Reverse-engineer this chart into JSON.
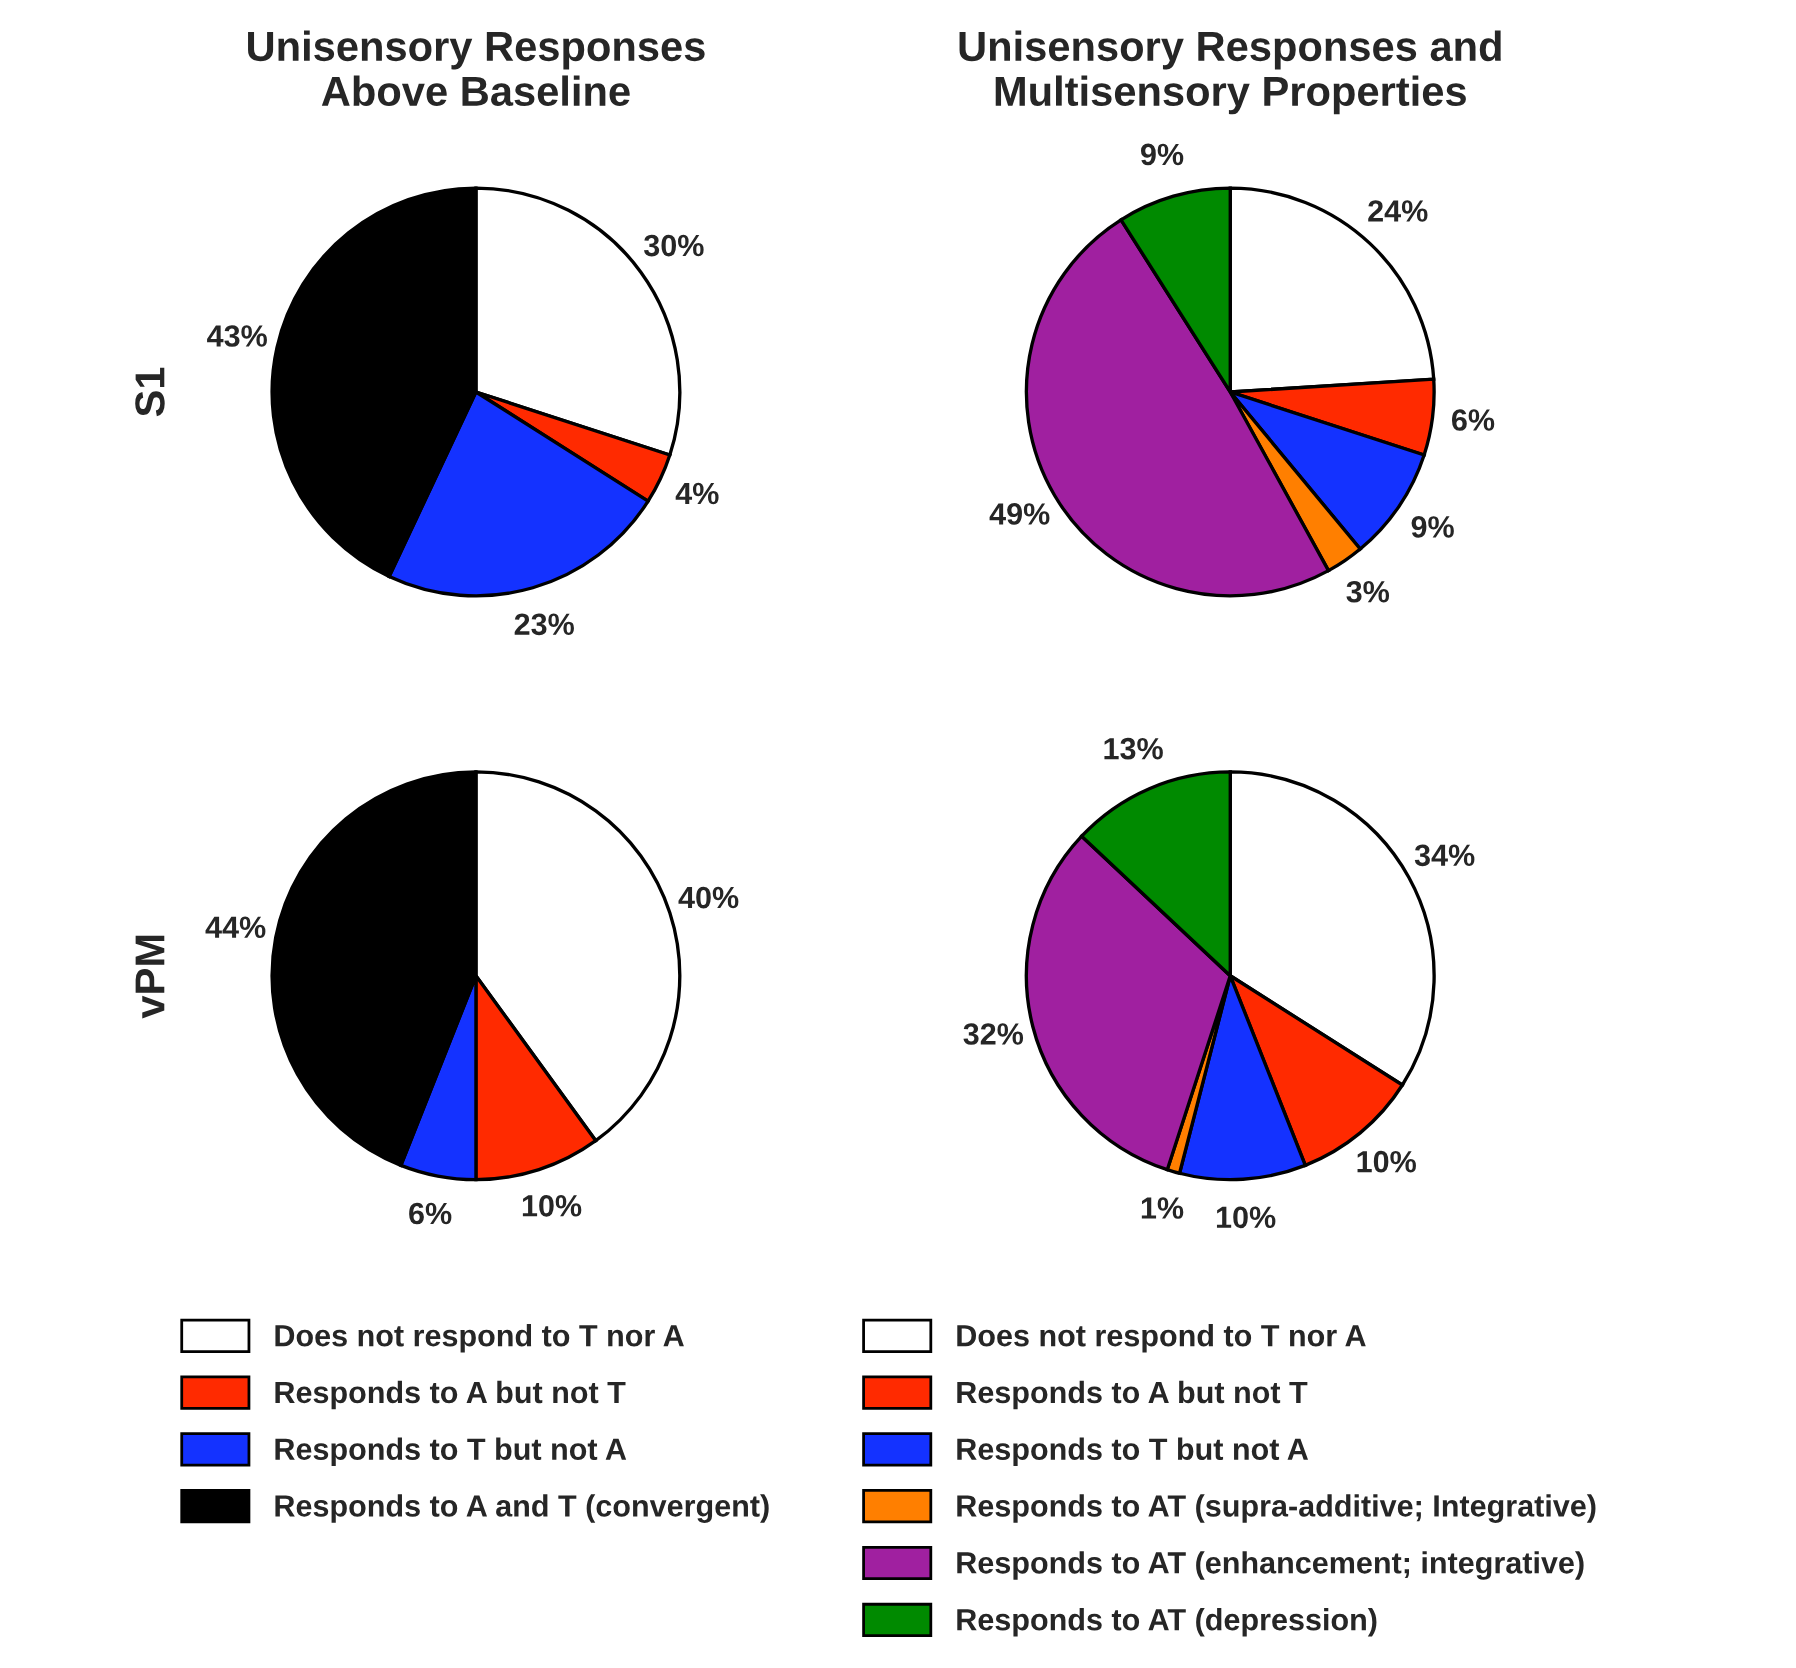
{
  "chart_data": [
    {
      "type": "pie",
      "title": "Unisensory Responses\nAbove Baseline",
      "ylabel": "S1",
      "categories": [
        "Does not respond to T nor A",
        "Responds to A but not T",
        "Responds to T but not A",
        "Responds to A and T (convergent)"
      ],
      "values": [
        30,
        4,
        23,
        43
      ],
      "colors": [
        "#ffffff",
        "#ff2a00",
        "#1432ff",
        "#000000"
      ],
      "value_labels": [
        "30%",
        "4%",
        "23%",
        "43%"
      ],
      "legend": "bottom"
    },
    {
      "type": "pie",
      "title": "Unisensory Responses and\nMultisensory Properties",
      "categories": [
        "Does not respond to T nor A",
        "Responds to A but not T",
        "Responds to T but not A",
        "Responds to AT (supra-additive; Integrative)",
        "Responds to AT (enhancement; integrative)",
        "Responds to AT (depression)"
      ],
      "values": [
        24,
        6,
        9,
        3,
        49,
        9
      ],
      "colors": [
        "#ffffff",
        "#ff2a00",
        "#1432ff",
        "#ff7f00",
        "#a020a0",
        "#008a00"
      ],
      "value_labels": [
        "24%",
        "6%",
        "9%",
        "3%",
        "49%",
        "9%"
      ],
      "legend": "bottom"
    },
    {
      "type": "pie",
      "ylabel": "vPM",
      "categories": [
        null,
        null,
        null,
        null
      ],
      "values": [
        40,
        10,
        6,
        44
      ],
      "colors": [
        "#ffffff",
        "#ff2a00",
        "#1432ff",
        "#000000"
      ],
      "value_labels": [
        "40%",
        "10%",
        "6%",
        "44%"
      ]
    },
    {
      "type": "pie",
      "categories": [
        null,
        null,
        null,
        null,
        null,
        null
      ],
      "values": [
        34,
        10,
        10,
        1,
        32,
        13
      ],
      "colors": [
        "#ffffff",
        "#ff2a00",
        "#1432ff",
        "#ff7f00",
        "#a020a0",
        "#008a00"
      ],
      "value_labels": [
        "34%",
        "10%",
        "10%",
        "1%",
        "32%",
        "13%"
      ]
    }
  ]
}
